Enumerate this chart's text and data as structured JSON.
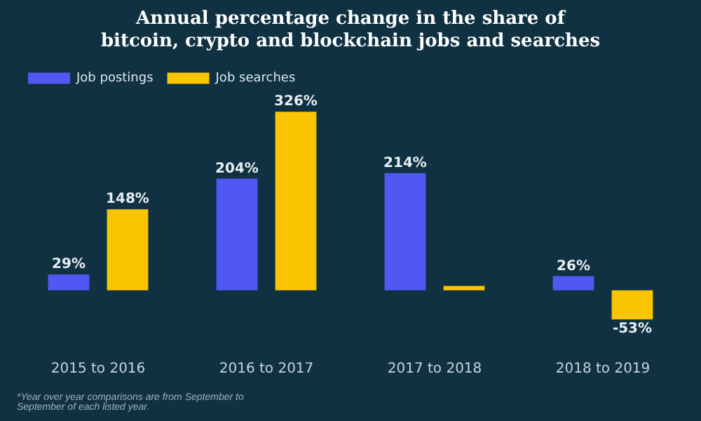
{
  "chart_data": {
    "type": "bar",
    "title": [
      "Annual percentage change in the share of",
      "bitcoin, crypto and blockchain jobs and searches"
    ],
    "categories": [
      "2015 to 2016",
      "2016 to 2017",
      "2017 to 2018",
      "2018 to 2019"
    ],
    "series": [
      {
        "name": "Job postings",
        "color": "#5157f2",
        "values": [
          29,
          204,
          214,
          26
        ],
        "value_labels": [
          "29%",
          "204%",
          "214%",
          "26%"
        ]
      },
      {
        "name": "Job searches",
        "color": "#f9c400",
        "values": [
          148,
          326,
          8,
          -53
        ],
        "value_labels": [
          "148%",
          "326%",
          null,
          "-53%"
        ]
      }
    ],
    "legend": "top left",
    "annotations": [
      "*Year over year comparisons are from September to September of each listed year."
    ]
  }
}
